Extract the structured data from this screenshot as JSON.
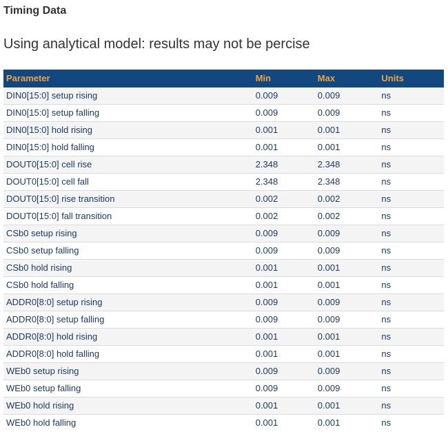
{
  "page": {
    "title": "Timing Data",
    "subtitle": "Using analytical model: results may not be percise"
  },
  "table": {
    "columns": [
      "Parameter",
      "Min",
      "Max",
      "Units"
    ],
    "rows": [
      {
        "parameter": "DIN0[15:0] setup rising",
        "min": "0.009",
        "max": "0.009",
        "units": "ns"
      },
      {
        "parameter": "DIN0[15:0] setup falling",
        "min": "0.009",
        "max": "0.009",
        "units": "ns"
      },
      {
        "parameter": "DIN0[15:0] hold rising",
        "min": "0.001",
        "max": "0.001",
        "units": "ns"
      },
      {
        "parameter": "DIN0[15:0] hold falling",
        "min": "0.001",
        "max": "0.001",
        "units": "ns"
      },
      {
        "parameter": "DOUT0[15:0] cell rise",
        "min": "2.348",
        "max": "2.348",
        "units": "ns"
      },
      {
        "parameter": "DOUT0[15:0] cell fall",
        "min": "2.348",
        "max": "2.348",
        "units": "ns"
      },
      {
        "parameter": "DOUT0[15:0] rise transition",
        "min": "0.002",
        "max": "0.002",
        "units": "ns"
      },
      {
        "parameter": "DOUT0[15:0] fall transition",
        "min": "0.002",
        "max": "0.002",
        "units": "ns"
      },
      {
        "parameter": "CSb0 setup rising",
        "min": "0.009",
        "max": "0.009",
        "units": "ns"
      },
      {
        "parameter": "CSb0 setup falling",
        "min": "0.009",
        "max": "0.009",
        "units": "ns"
      },
      {
        "parameter": "CSb0 hold rising",
        "min": "0.001",
        "max": "0.001",
        "units": "ns"
      },
      {
        "parameter": "CSb0 hold falling",
        "min": "0.001",
        "max": "0.001",
        "units": "ns"
      },
      {
        "parameter": "ADDR0[8:0] setup rising",
        "min": "0.009",
        "max": "0.009",
        "units": "ns"
      },
      {
        "parameter": "ADDR0[8:0] setup falling",
        "min": "0.009",
        "max": "0.009",
        "units": "ns"
      },
      {
        "parameter": "ADDR0[8:0] hold rising",
        "min": "0.001",
        "max": "0.001",
        "units": "ns"
      },
      {
        "parameter": "ADDR0[8:0] hold falling",
        "min": "0.001",
        "max": "0.001",
        "units": "ns"
      },
      {
        "parameter": "WEb0 setup rising",
        "min": "0.009",
        "max": "0.009",
        "units": "ns"
      },
      {
        "parameter": "WEb0 setup falling",
        "min": "0.009",
        "max": "0.009",
        "units": "ns"
      },
      {
        "parameter": "WEb0 hold rising",
        "min": "0.001",
        "max": "0.001",
        "units": "ns"
      },
      {
        "parameter": "WEb0 hold falling",
        "min": "0.001",
        "max": "0.001",
        "units": "ns"
      }
    ]
  },
  "colors": {
    "header_bg": "#12477F",
    "header_text": "#F0A33C",
    "row_alt_bg": "#F3F4F3",
    "row_border": "#DBDBDB",
    "cell_text": "#1C3A66",
    "heading_text": "#333333",
    "page_bg": "#FFFFFF"
  }
}
